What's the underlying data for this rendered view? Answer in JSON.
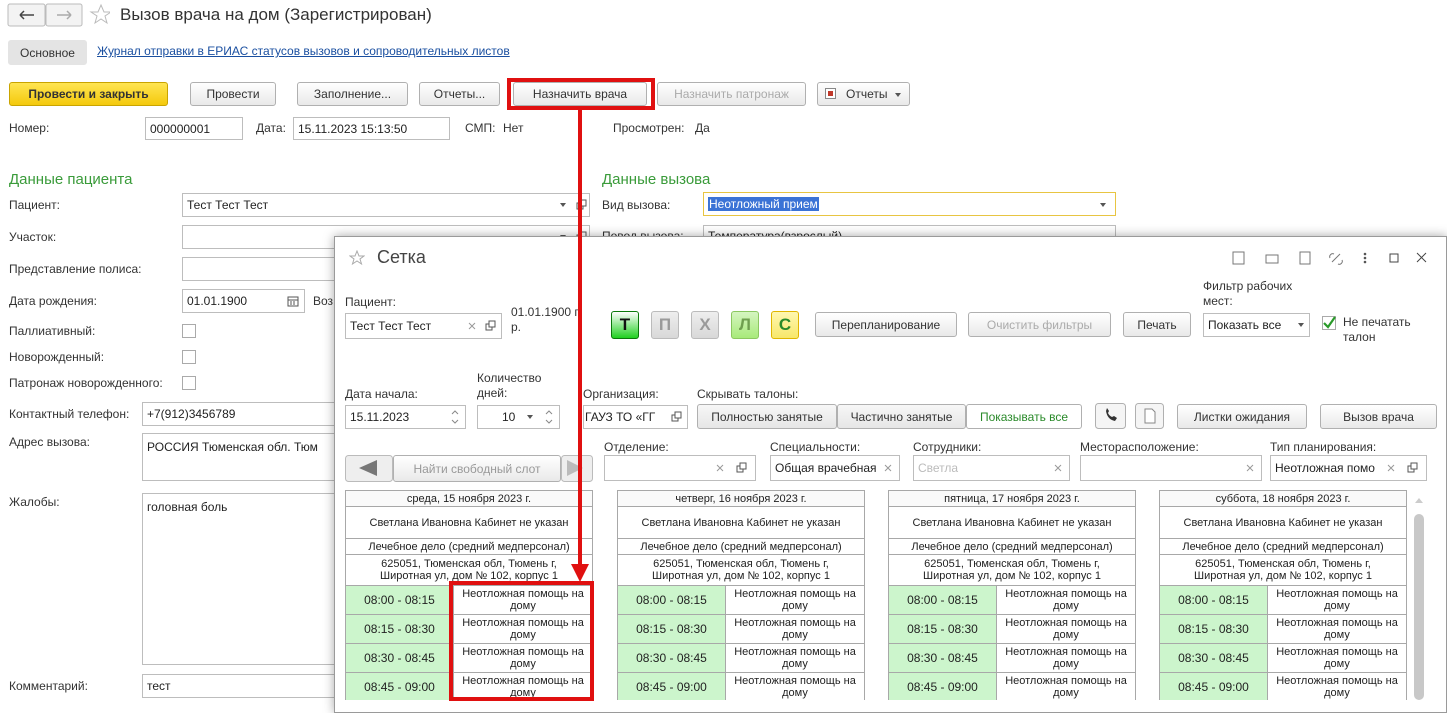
{
  "header": {
    "title": "Вызов врача на дом (Зарегистрирован)"
  },
  "tabs": [
    "Основное",
    "Журнал отправки в ЕРИАС статусов вызовов и сопроводительных листов"
  ],
  "toolbar": [
    "Провести и закрыть",
    "Провести",
    "Заполнение...",
    "Отчеты...",
    "Назначить врача",
    "Назначить патронаж",
    "Отчеты"
  ],
  "info": {
    "number_label": "Номер:",
    "number": "000000001",
    "date_label": "Дата:",
    "date": "15.11.2023 15:13:50",
    "smp_label": "СМП:",
    "smp": "Нет",
    "viewed_label": "Просмотрен:",
    "viewed": "Да"
  },
  "patient": {
    "title": "Данные пациента",
    "fields": [
      {
        "label": "Пациент:",
        "value": "Тест Тест Тест"
      },
      {
        "label": "Участок:"
      },
      {
        "label": "Представление полиса:"
      },
      {
        "label": "Дата рождения:",
        "value": "01.01.1900",
        "extra": "Воз"
      },
      {
        "label": "Паллиативный:"
      },
      {
        "label": "Новорожденный:"
      },
      {
        "label": "Патронаж новорожденного:"
      },
      {
        "label": "Контактный телефон:",
        "value": "+7(912)3456789"
      },
      {
        "label": "Адрес вызова:",
        "value": "РОССИЯ Тюменская обл. Тюм"
      },
      {
        "label": "Жалобы:",
        "value": "головная боль"
      },
      {
        "label": "Комментарий:",
        "value": "тест"
      }
    ]
  },
  "call": {
    "title": "Данные вызова",
    "fields": [
      {
        "label": "Вид вызова:",
        "value": "Неотложный прием"
      },
      {
        "label": "Повод вызова:",
        "value": "Температура(взрослый)"
      }
    ]
  },
  "dialog": {
    "title": "Сетка",
    "patient_label": "Пациент:",
    "patient": "Тест Тест Тест",
    "dob": "01.01.1900 г. р.",
    "mode_buttons": [
      "Т",
      "П",
      "Х",
      "Л",
      "С"
    ],
    "buttons": [
      "Перепланирование",
      "Очистить фильтры",
      "Печать"
    ],
    "workplace_filter_label": "Фильтр рабочих мест:",
    "workplace_filter": "Показать все",
    "no_print": "Не печатать талон",
    "start_label": "Дата начала:",
    "start": "15.11.2023",
    "days_count_label": "Количество дней:",
    "days_count": 10,
    "org_label": "Организация:",
    "org": "ГАУЗ ТО «ГГ",
    "hide_label": "Скрывать талоны:",
    "hide_options": [
      "Полностью занятые",
      "Частично занятые",
      "Показывать все"
    ],
    "waitlist": "Листки ожидания",
    "call_doctor": "Вызов врача",
    "find_slot": "Найти свободный слот",
    "filters": [
      {
        "label": "Отделение:"
      },
      {
        "label": "Специальности:",
        "value": "Общая врачебная"
      },
      {
        "label": "Сотрудники:",
        "value": "Светла"
      },
      {
        "label": "Месторасположение:"
      },
      {
        "label": "Тип планирования:",
        "value": "Неотложная помо"
      }
    ],
    "days": [
      {
        "date": "среда, 15 ноября 2023 г.",
        "doctor": "Светлана Ивановна Кабинет не указан",
        "specialty": "Лечебное дело (средний медперсонал)",
        "address": "625051, Тюменская обл, Тюмень г, Широтная ул, дом № 102, корпус 1",
        "slots": [
          {
            "time": "08:00 - 08:15",
            "service": "Неотложная помощь на дому"
          },
          {
            "time": "08:15 - 08:30",
            "service": "Неотложная помощь на дому"
          },
          {
            "time": "08:30 - 08:45",
            "service": "Неотложная помощь на дому"
          },
          {
            "time": "08:45 - 09:00",
            "service": "Неотложная помощь на дому"
          }
        ]
      },
      {
        "date": "четверг, 16 ноября 2023 г.",
        "doctor": "Светлана Ивановна Кабинет не указан",
        "specialty": "Лечебное дело (средний медперсонал)",
        "address": "625051, Тюменская обл, Тюмень г, Широтная ул, дом № 102, корпус 1",
        "slots": [
          {
            "time": "08:00 - 08:15",
            "service": "Неотложная помощь на дому"
          },
          {
            "time": "08:15 - 08:30",
            "service": "Неотложная помощь на дому"
          },
          {
            "time": "08:30 - 08:45",
            "service": "Неотложная помощь на дому"
          },
          {
            "time": "08:45 - 09:00",
            "service": "Неотложная помощь на дому"
          }
        ]
      },
      {
        "date": "пятница, 17 ноября 2023 г.",
        "doctor": "Светлана Ивановна Кабинет не указан",
        "specialty": "Лечебное дело (средний медперсонал)",
        "address": "625051, Тюменская обл, Тюмень г, Широтная ул, дом № 102, корпус 1",
        "slots": [
          {
            "time": "08:00 - 08:15",
            "service": "Неотложная помощь на дому"
          },
          {
            "time": "08:15 - 08:30",
            "service": "Неотложная помощь на дому"
          },
          {
            "time": "08:30 - 08:45",
            "service": "Неотложная помощь на дому"
          },
          {
            "time": "08:45 - 09:00",
            "service": "Неотложная помощь на дому"
          }
        ]
      },
      {
        "date": "суббота, 18 ноября 2023 г.",
        "doctor": "Светлана Ивановна Кабинет не указан",
        "specialty": "Лечебное дело (средний медперсонал)",
        "address": "625051, Тюменская обл, Тюмень г, Широтная ул, дом № 102, корпус 1",
        "slots": [
          {
            "time": "08:00 - 08:15",
            "service": "Неотложная помощь на дому"
          },
          {
            "time": "08:15 - 08:30",
            "service": "Неотложная помощь на дому"
          },
          {
            "time": "08:30 - 08:45",
            "service": "Неотложная помощь на дому"
          },
          {
            "time": "08:45 - 09:00",
            "service": "Неотложная помощь на дому"
          }
        ]
      }
    ]
  }
}
